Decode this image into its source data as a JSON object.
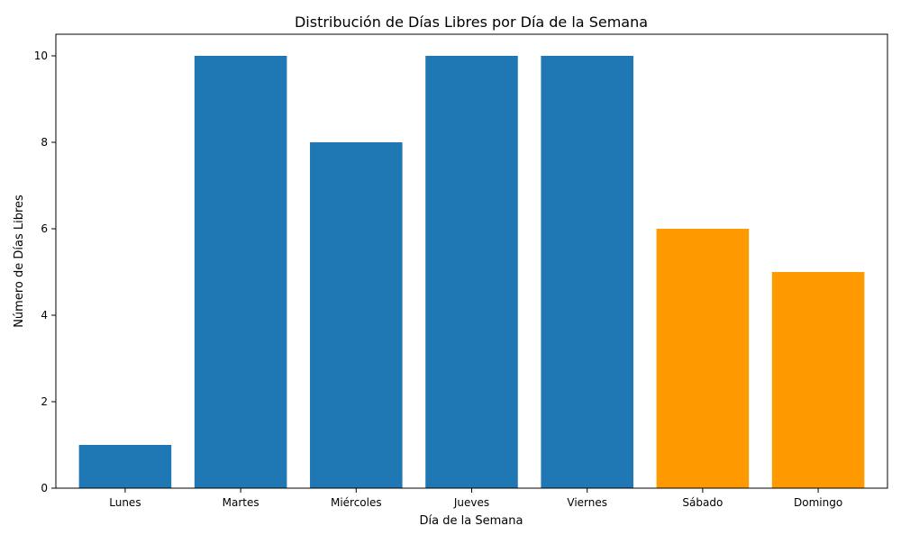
{
  "chart_data": {
    "type": "bar",
    "title": "Distribución de Días Libres por Día de la Semana",
    "xlabel": "Día de la Semana",
    "ylabel": "Número de Días Libres",
    "categories": [
      "Lunes",
      "Martes",
      "Miércoles",
      "Jueves",
      "Viernes",
      "Sábado",
      "Domingo"
    ],
    "values": [
      1,
      10,
      8,
      10,
      10,
      6,
      5
    ],
    "bar_colors": [
      "#1f77b4",
      "#1f77b4",
      "#1f77b4",
      "#1f77b4",
      "#1f77b4",
      "#ff9900",
      "#ff9900"
    ],
    "ylim": [
      0,
      10.5
    ],
    "yticks": [
      0,
      2,
      4,
      6,
      8,
      10
    ],
    "grid": false,
    "legend": "none"
  }
}
